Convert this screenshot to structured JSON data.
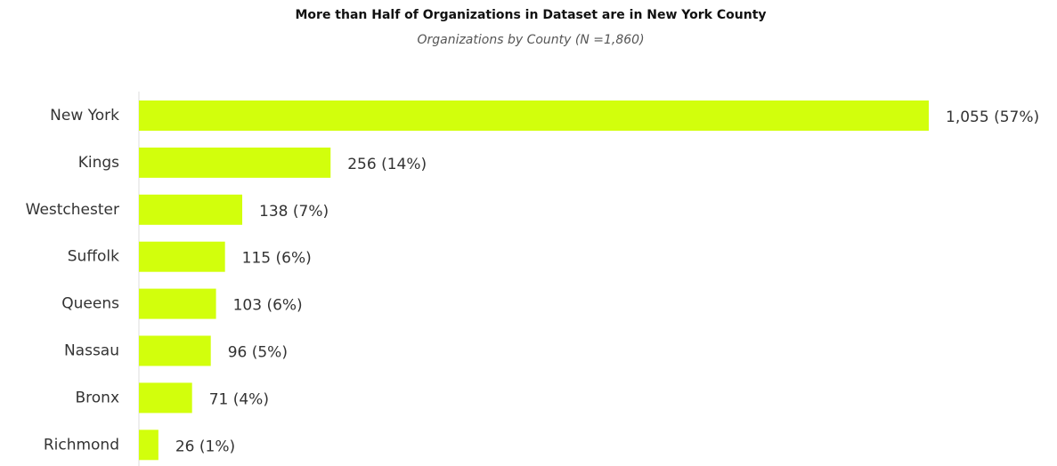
{
  "chart_data": {
    "type": "bar",
    "orientation": "horizontal",
    "title": "More than Half of Organizations in Dataset are in New York County",
    "subtitle": "Organizations by County (N =1,860)",
    "categories": [
      "New York",
      "Kings",
      "Westchester",
      "Suffolk",
      "Queens",
      "Nassau",
      "Bronx",
      "Richmond"
    ],
    "values": [
      1055,
      256,
      138,
      115,
      103,
      96,
      71,
      26
    ],
    "value_labels": [
      "1,055 (57%)",
      "256 (14%)",
      "138 (7%)",
      "115 (6%)",
      "103 (6%)",
      "96 (5%)",
      "71 (4%)",
      "26 (1%)"
    ],
    "color": "#d2ff0c"
  }
}
